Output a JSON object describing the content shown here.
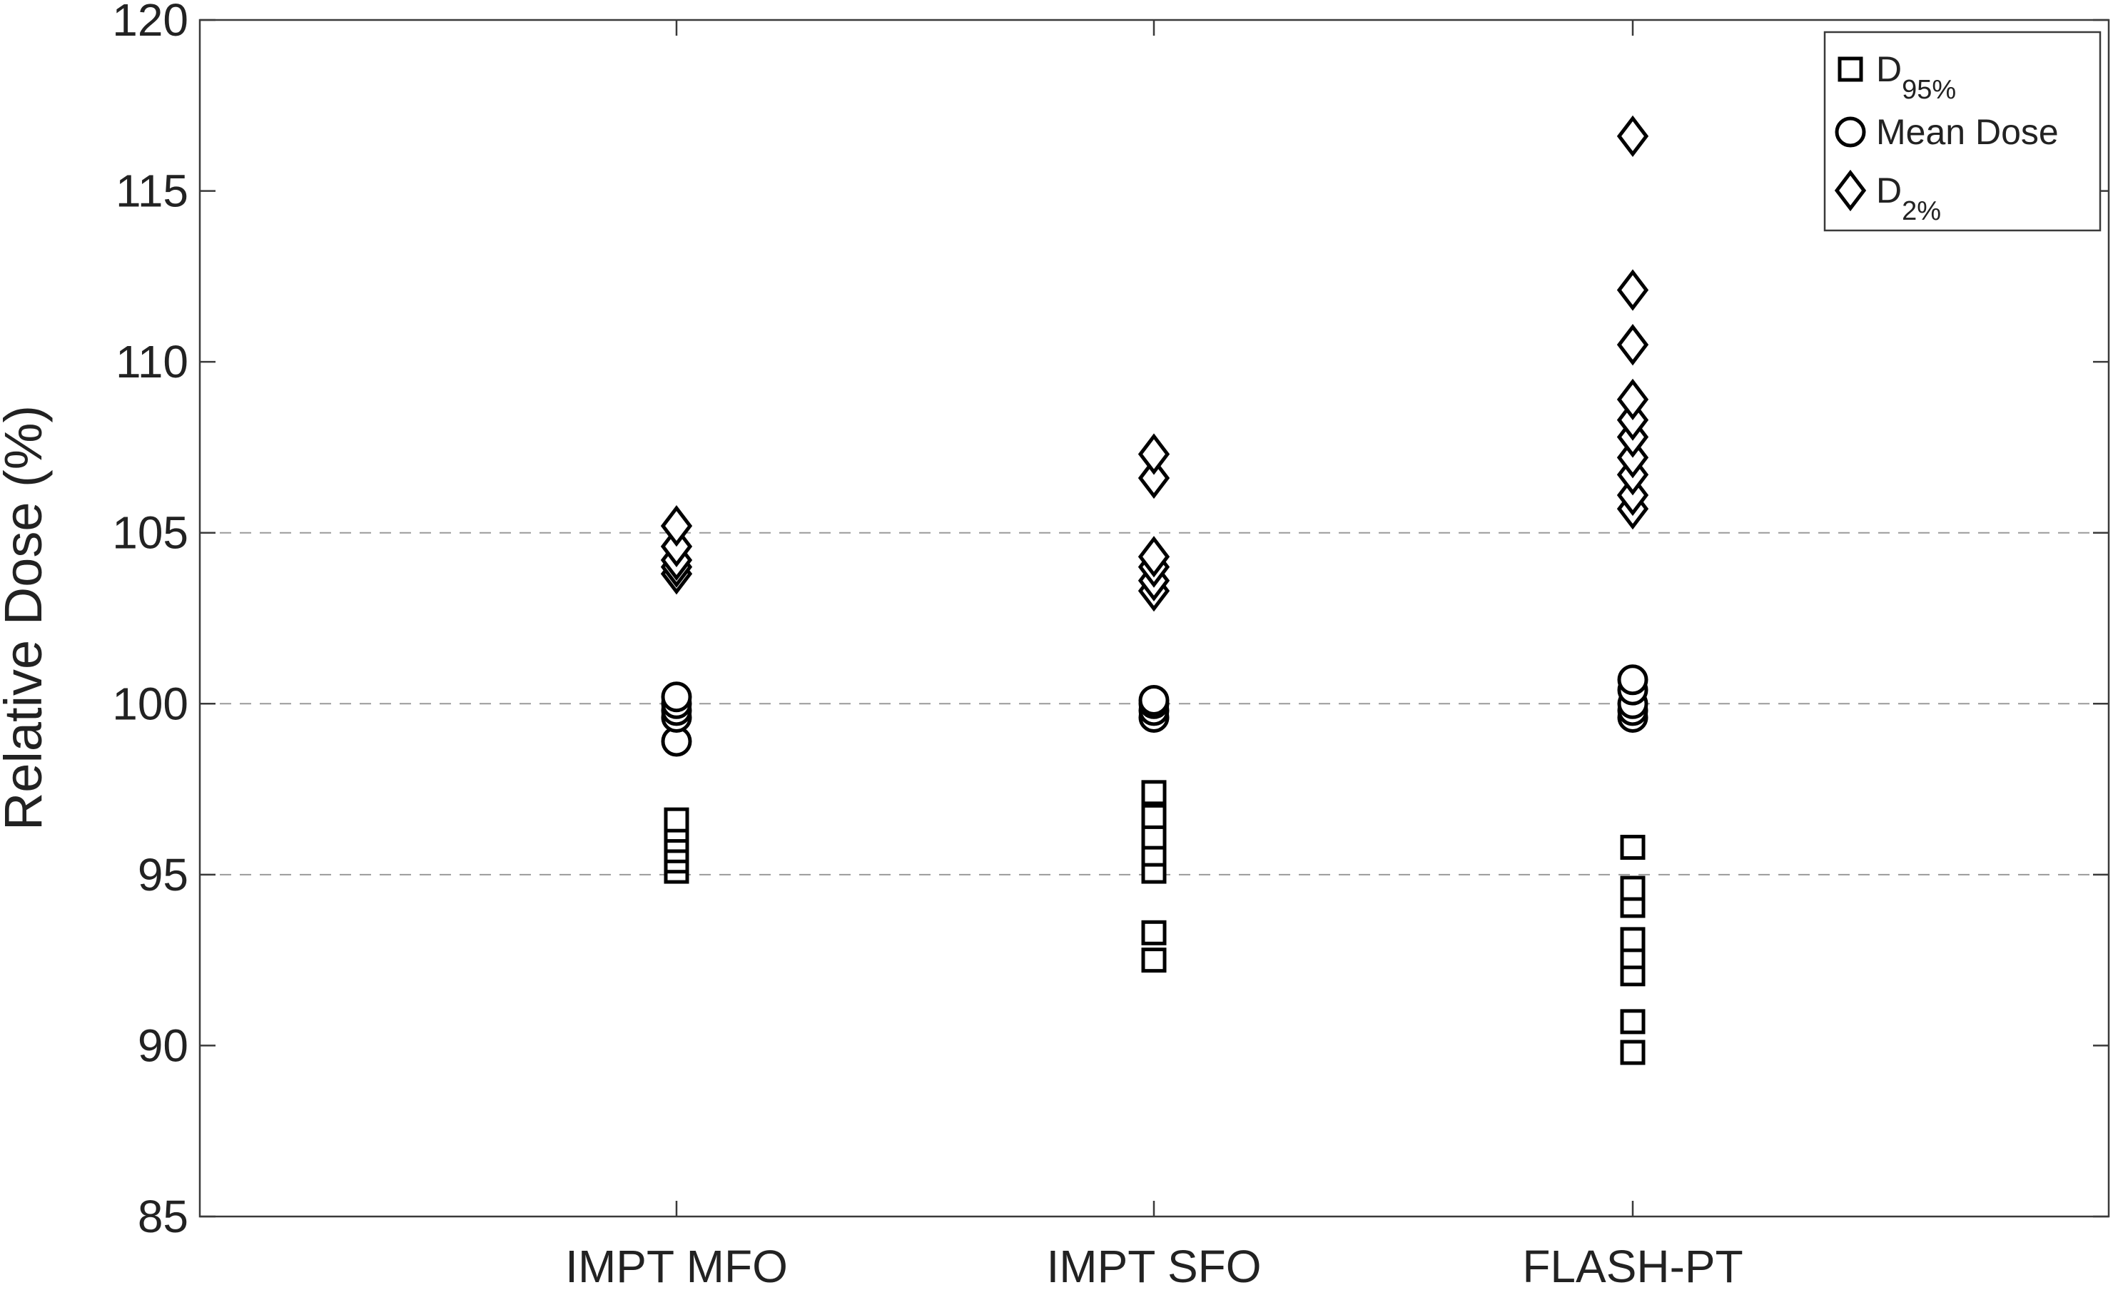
{
  "chart_data": {
    "type": "scatter",
    "categories": [
      "IMPT MFO",
      "IMPT SFO",
      "FLASH-PT"
    ],
    "ylabel": "Relative Dose (%)",
    "xlabel": "",
    "ylim": [
      85,
      120
    ],
    "yticks": [
      85,
      90,
      95,
      100,
      105,
      110,
      115,
      120
    ],
    "grid_y": [
      95,
      100,
      105
    ],
    "grid_style": "dashed",
    "legend_position": "top-right",
    "series": [
      {
        "marker": "square",
        "label_main": "D",
        "label_sub": "95%",
        "values": [
          [
            95.1,
            95.4,
            95.7,
            96.0,
            96.3,
            96.6
          ],
          [
            92.5,
            93.3,
            95.1,
            95.6,
            96.1,
            96.7,
            97.4
          ],
          [
            89.8,
            90.7,
            92.1,
            92.6,
            93.1,
            94.1,
            94.6,
            95.8
          ]
        ]
      },
      {
        "marker": "circle",
        "label_main": "Mean Dose",
        "label_sub": "",
        "values": [
          [
            98.9,
            99.6,
            99.8,
            100.0,
            100.2
          ],
          [
            99.6,
            99.8,
            100.0,
            100.1
          ],
          [
            99.6,
            99.8,
            100.0,
            100.4,
            100.7
          ]
        ]
      },
      {
        "marker": "diamond",
        "label_main": "D",
        "label_sub": "2%",
        "values": [
          [
            103.8,
            104.0,
            104.2,
            104.6,
            105.2
          ],
          [
            103.3,
            103.6,
            104.0,
            104.3,
            106.6,
            107.3
          ],
          [
            105.7,
            106.1,
            106.7,
            107.2,
            107.8,
            108.3,
            108.9,
            110.5,
            112.1,
            116.6
          ]
        ]
      }
    ]
  }
}
